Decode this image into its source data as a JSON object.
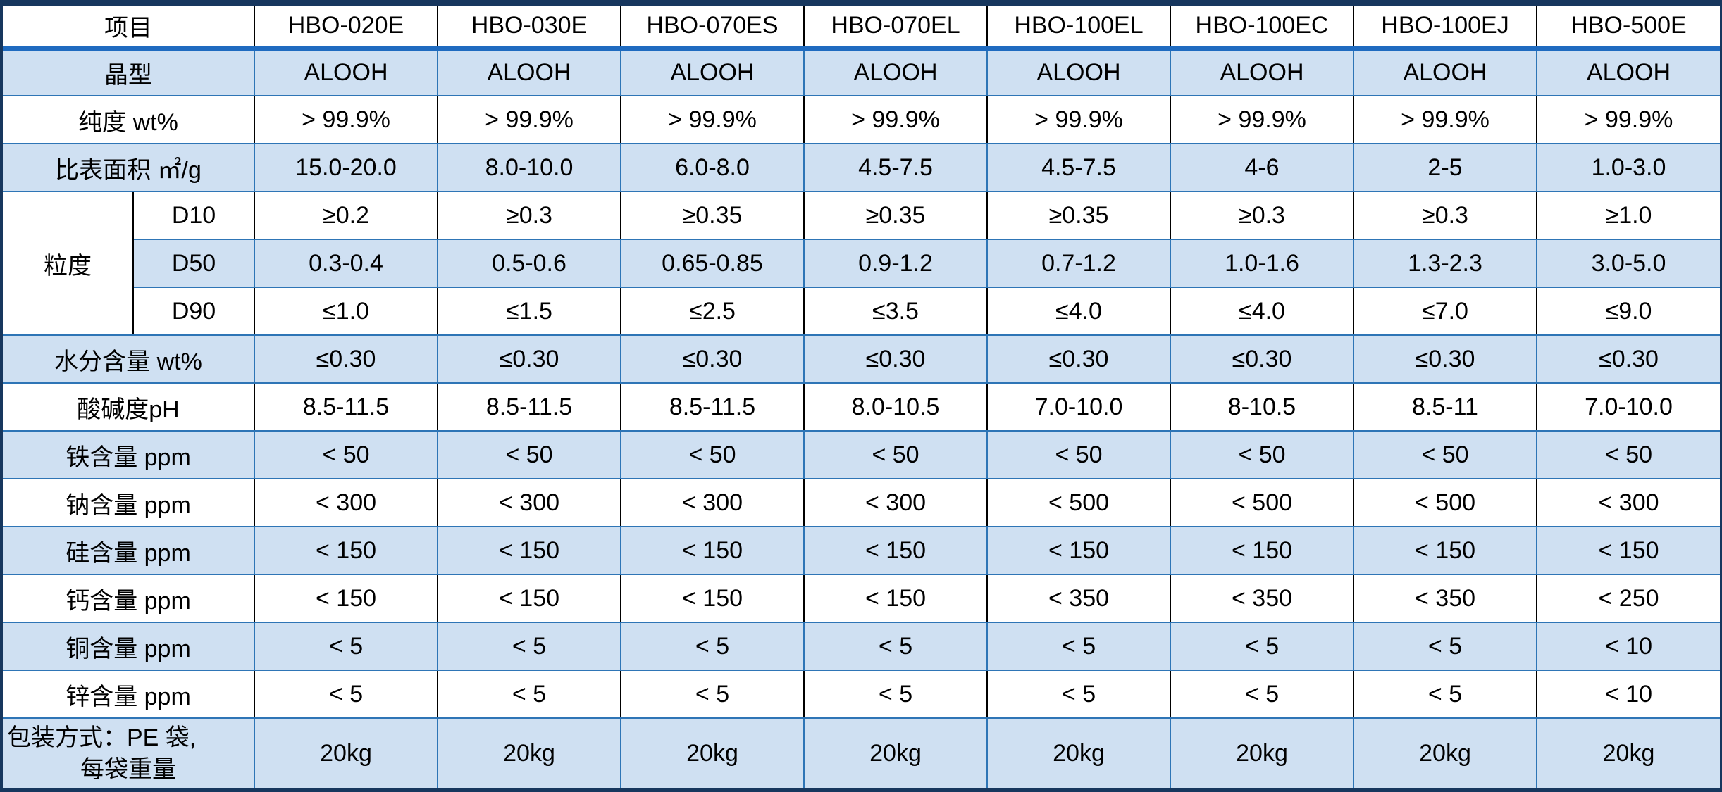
{
  "chart_data": {
    "type": "table",
    "title": "",
    "header": {
      "item_label": "项目",
      "products": [
        "HBO-020E",
        "HBO-030E",
        "HBO-070ES",
        "HBO-070EL",
        "HBO-100EL",
        "HBO-100EC",
        "HBO-100EJ",
        "HBO-500E"
      ]
    },
    "particle_group_label": "粒度",
    "rows": [
      {
        "id": "crystal-form",
        "label": "晶型",
        "values": [
          "ALOOH",
          "ALOOH",
          "ALOOH",
          "ALOOH",
          "ALOOH",
          "ALOOH",
          "ALOOH",
          "ALOOH"
        ]
      },
      {
        "id": "purity",
        "label": "纯度 wt%",
        "values": [
          "> 99.9%",
          "> 99.9%",
          "> 99.9%",
          "> 99.9%",
          "> 99.9%",
          "> 99.9%",
          "> 99.9%",
          "> 99.9%"
        ]
      },
      {
        "id": "surface-area",
        "label": "比表面积 ㎡/g",
        "values": [
          "15.0-20.0",
          "8.0-10.0",
          "6.0-8.0",
          "4.5-7.5",
          "4.5-7.5",
          "4-6",
          "2-5",
          "1.0-3.0"
        ]
      },
      {
        "id": "d10",
        "sublabel": "D10",
        "group": "粒度",
        "values": [
          "≥0.2",
          "≥0.3",
          "≥0.35",
          "≥0.35",
          "≥0.35",
          "≥0.3",
          "≥0.3",
          "≥1.0"
        ]
      },
      {
        "id": "d50",
        "sublabel": "D50",
        "values": [
          "0.3-0.4",
          "0.5-0.6",
          "0.65-0.85",
          "0.9-1.2",
          "0.7-1.2",
          "1.0-1.6",
          "1.3-2.3",
          "3.0-5.0"
        ]
      },
      {
        "id": "d90",
        "sublabel": "D90",
        "values": [
          "≤1.0",
          "≤1.5",
          "≤2.5",
          "≤3.5",
          "≤4.0",
          "≤4.0",
          "≤7.0",
          "≤9.0"
        ]
      },
      {
        "id": "moisture",
        "label": "水分含量 wt%",
        "values": [
          "≤0.30",
          "≤0.30",
          "≤0.30",
          "≤0.30",
          "≤0.30",
          "≤0.30",
          "≤0.30",
          "≤0.30"
        ]
      },
      {
        "id": "ph",
        "label": "酸碱度pH",
        "values": [
          "8.5-11.5",
          "8.5-11.5",
          "8.5-11.5",
          "8.0-10.5",
          "7.0-10.0",
          "8-10.5",
          "8.5-11",
          "7.0-10.0"
        ]
      },
      {
        "id": "iron",
        "label": "铁含量 ppm",
        "values": [
          "< 50",
          "< 50",
          "< 50",
          "< 50",
          "< 50",
          "< 50",
          "< 50",
          "< 50"
        ]
      },
      {
        "id": "sodium",
        "label": "钠含量 ppm",
        "values": [
          "< 300",
          "< 300",
          "< 300",
          "< 300",
          "< 500",
          "< 500",
          "< 500",
          "< 300"
        ]
      },
      {
        "id": "silicon",
        "label": "硅含量 ppm",
        "values": [
          "< 150",
          "< 150",
          "< 150",
          "< 150",
          "< 150",
          "< 150",
          "< 150",
          "< 150"
        ]
      },
      {
        "id": "calcium",
        "label": "钙含量 ppm",
        "values": [
          "< 150",
          "< 150",
          "< 150",
          "< 150",
          "< 350",
          "< 350",
          "< 350",
          "< 250"
        ]
      },
      {
        "id": "copper",
        "label": "铜含量 ppm",
        "values": [
          "< 5",
          "< 5",
          "< 5",
          "< 5",
          "< 5",
          "< 5",
          "< 5",
          "< 10"
        ]
      },
      {
        "id": "zinc",
        "label": "锌含量 ppm",
        "values": [
          "< 5",
          "< 5",
          "< 5",
          "< 5",
          "< 5",
          "< 5",
          "< 5",
          "< 10"
        ]
      },
      {
        "id": "packaging",
        "label_line1": "包装方式：PE 袋,",
        "label_line2": "每袋重量",
        "values": [
          "20kg",
          "20kg",
          "20kg",
          "20kg",
          "20kg",
          "20kg",
          "20kg",
          "20kg"
        ]
      }
    ],
    "layout": {
      "grid": true,
      "banded_rows": true
    }
  },
  "colors": {
    "band_fill": "#cfe0f2",
    "grid_blue": "#2e75b6",
    "header_underline": "#1f6bc0",
    "outer_frame": "#17375e",
    "plain_fill": "#ffffff",
    "text": "#000000"
  }
}
